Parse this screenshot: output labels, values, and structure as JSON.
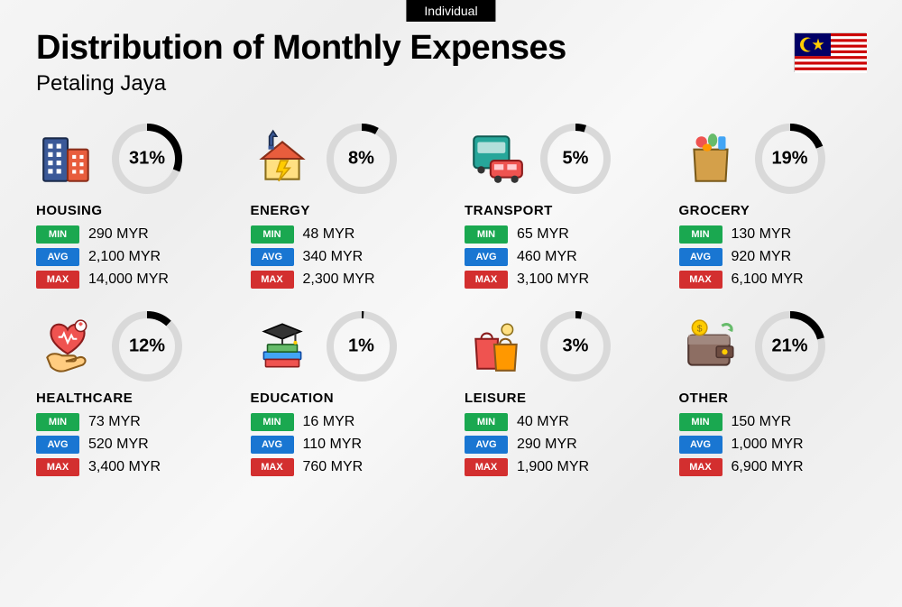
{
  "tag": "Individual",
  "title": "Distribution of Monthly Expenses",
  "subtitle": "Petaling Jaya",
  "currency": "MYR",
  "badge_labels": {
    "min": "MIN",
    "avg": "AVG",
    "max": "MAX"
  },
  "badge_colors": {
    "min": "#1aa850",
    "avg": "#1976d2",
    "max": "#d32f2f"
  },
  "donut": {
    "size": 78,
    "stroke_width": 8,
    "track_color": "#d9d9d9",
    "fill_color": "#000000",
    "pct_fontsize": 20
  },
  "typography": {
    "title_fontsize": 38,
    "subtitle_fontsize": 24,
    "category_fontsize": 15,
    "value_fontsize": 16
  },
  "background_color": "#f5f5f5",
  "categories": [
    {
      "key": "housing",
      "name": "HOUSING",
      "pct": 31,
      "min": "290 MYR",
      "avg": "2,100 MYR",
      "max": "14,000 MYR",
      "icon": "buildings"
    },
    {
      "key": "energy",
      "name": "ENERGY",
      "pct": 8,
      "min": "48 MYR",
      "avg": "340 MYR",
      "max": "2,300 MYR",
      "icon": "house-energy"
    },
    {
      "key": "transport",
      "name": "TRANSPORT",
      "pct": 5,
      "min": "65 MYR",
      "avg": "460 MYR",
      "max": "3,100 MYR",
      "icon": "bus-car"
    },
    {
      "key": "grocery",
      "name": "GROCERY",
      "pct": 19,
      "min": "130 MYR",
      "avg": "920 MYR",
      "max": "6,100 MYR",
      "icon": "grocery-bag"
    },
    {
      "key": "healthcare",
      "name": "HEALTHCARE",
      "pct": 12,
      "min": "73 MYR",
      "avg": "520 MYR",
      "max": "3,400 MYR",
      "icon": "heart-hand"
    },
    {
      "key": "education",
      "name": "EDUCATION",
      "pct": 1,
      "min": "16 MYR",
      "avg": "110 MYR",
      "max": "760 MYR",
      "icon": "books-cap"
    },
    {
      "key": "leisure",
      "name": "LEISURE",
      "pct": 3,
      "min": "40 MYR",
      "avg": "290 MYR",
      "max": "1,900 MYR",
      "icon": "shopping-bags"
    },
    {
      "key": "other",
      "name": "OTHER",
      "pct": 21,
      "min": "150 MYR",
      "avg": "1,000 MYR",
      "max": "6,900 MYR",
      "icon": "wallet"
    }
  ]
}
